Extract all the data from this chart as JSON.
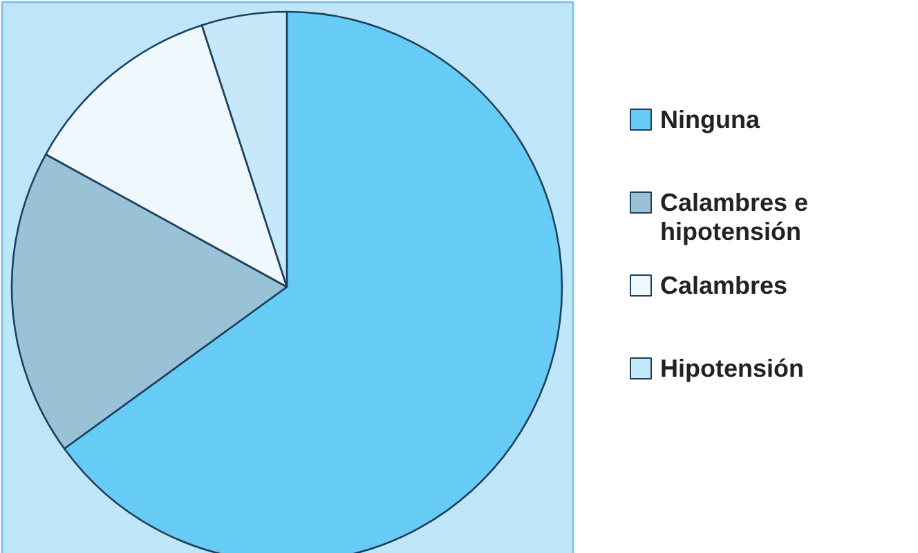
{
  "chart_data": {
    "type": "pie",
    "categories": [
      "Ninguna",
      "Calambres e hipotensión",
      "Calambres",
      "Hipotensión"
    ],
    "values": [
      65,
      18,
      12,
      5
    ],
    "colors": [
      "#66ccf5",
      "#99c2d6",
      "#eef8fd",
      "#c6e9fa"
    ],
    "legend": "right"
  }
}
